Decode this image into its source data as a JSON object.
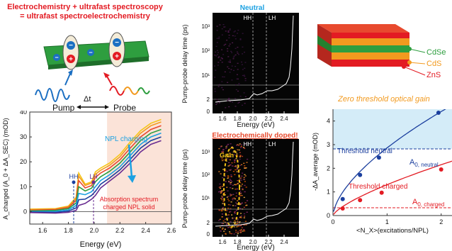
{
  "header": {
    "line1": "Electrochemistry + ultrafast spectroscopy",
    "line2": "= ultrafast spectroelectrochemistry"
  },
  "scheme": {
    "pump_label": "Pump",
    "probe_label": "Probe",
    "delay_label": "Δt",
    "plus": "+",
    "minus": "−"
  },
  "colors": {
    "title_red": "#e31b23",
    "neutral_blue": "#1ba1e2",
    "doped_red": "#e84a2e",
    "gain_yellow": "#f5c518",
    "cdse_green": "#2e9e3f",
    "cds_orange": "#f29a1f",
    "zns_red": "#e31b23",
    "fit_blue": "#1b3f9e",
    "fit_red": "#e31b23"
  },
  "spectra_panel": {
    "ylabel": "A_charged (A_0 + ΔA_SEC) (mOD)",
    "xlabel": "Energy (eV)",
    "annot_charging": "NPL charging",
    "annot_absorption1": "Absorption spectrum",
    "annot_absorption2": "charged NPL solid",
    "hh": "HH",
    "lh": "LH",
    "x_ticks": [
      "1.6",
      "1.8",
      "2.0",
      "2.2",
      "2.4",
      "2.6"
    ],
    "y_ticks": [
      "0",
      "10",
      "20",
      "30",
      "40"
    ]
  },
  "map_neutral": {
    "title": "Neutral",
    "ylabel": "Pump-probe delay time (ps)",
    "xlabel": "Energy (eV)",
    "hh": "HH",
    "lh": "LH",
    "x_ticks": [
      "1.6",
      "1.8",
      "2.0",
      "2.2",
      "2.4"
    ],
    "y_ticks": [
      "10³",
      "10²",
      "10¹",
      "2",
      "0"
    ]
  },
  "map_doped": {
    "title": "Electrochemically doped!",
    "ylabel": "Pump-probe delay time (ps)",
    "xlabel": "Energy (eV)",
    "gain_label": "Gain",
    "hh": "HH",
    "lh": "LH",
    "x_ticks": [
      "1.6",
      "1.8",
      "2.0",
      "2.2",
      "2.4"
    ],
    "y_ticks": [
      "10³",
      "10²",
      "10¹",
      "2",
      "0"
    ]
  },
  "heterostructure": {
    "layers": [
      "CdSe",
      "CdS",
      "ZnS"
    ]
  },
  "gain_panel": {
    "title": "Zero threshold optical gain",
    "ylabel": "-ΔA_average (mOD)",
    "xlabel": "<N_X>(excitations/NPL)",
    "threshold_neutral": "Threshold neutral",
    "threshold_charged": "Threshold charged",
    "a0_neutral": "A",
    "a0_neutral_sub": "0, neutral",
    "a0_charged": "A",
    "a0_charged_sub": "0, charged",
    "x_ticks": [
      "0",
      "1",
      "2"
    ],
    "y_ticks": [
      "0",
      "1",
      "2",
      "3",
      "4"
    ]
  },
  "chart_data": [
    {
      "type": "line",
      "xlabel": "Energy (eV)",
      "ylabel": "A_charged (A_0 + ΔA_SEC) (mOD)",
      "xlim": [
        1.5,
        2.6
      ],
      "ylim": [
        -5,
        40
      ],
      "annotations": [
        "NPL charging",
        "Absorption spectrum charged NPL solid",
        "HH",
        "LH"
      ],
      "series": [
        {
          "color": "#f5c518",
          "x": [
            1.5,
            1.7,
            1.8,
            1.86,
            1.88,
            1.93,
            1.98,
            2.01,
            2.05,
            2.12,
            2.2,
            2.28,
            2.36,
            2.44,
            2.52
          ],
          "y": [
            1.0,
            1.2,
            2.2,
            5.8,
            15.5,
            11.0,
            12.0,
            16.0,
            17.5,
            19.5,
            23.0,
            28.0,
            32.5,
            35.5,
            37.0
          ]
        },
        {
          "color": "#f29a1f",
          "x": [
            1.5,
            1.7,
            1.8,
            1.86,
            1.88,
            1.93,
            1.98,
            2.01,
            2.05,
            2.12,
            2.2,
            2.28,
            2.36,
            2.44,
            2.52
          ],
          "y": [
            0.8,
            1.0,
            2.0,
            5.3,
            14.3,
            10.5,
            11.5,
            15.0,
            16.6,
            18.6,
            22.0,
            27.0,
            31.5,
            34.5,
            36.0
          ]
        },
        {
          "color": "#e84a2e",
          "x": [
            1.5,
            1.7,
            1.8,
            1.86,
            1.88,
            1.93,
            1.98,
            2.01,
            2.05,
            2.12,
            2.2,
            2.28,
            2.36,
            2.44,
            2.52
          ],
          "y": [
            0.5,
            0.8,
            1.6,
            4.5,
            12.5,
            9.5,
            10.5,
            13.7,
            15.5,
            17.5,
            20.8,
            25.5,
            30.0,
            33.0,
            34.5
          ]
        },
        {
          "color": "#2e9e3f",
          "x": [
            1.5,
            1.7,
            1.8,
            1.86,
            1.88,
            1.93,
            1.98,
            2.01,
            2.05,
            2.12,
            2.2,
            2.28,
            2.36,
            2.44,
            2.52
          ],
          "y": [
            0.3,
            0.5,
            1.2,
            3.5,
            10.0,
            8.3,
            9.4,
            12.0,
            14.0,
            16.2,
            19.5,
            24.0,
            28.5,
            31.5,
            33.0
          ]
        },
        {
          "color": "#1ba1e2",
          "x": [
            1.5,
            1.7,
            1.8,
            1.86,
            1.88,
            1.93,
            1.98,
            2.01,
            2.05,
            2.12,
            2.2,
            2.28,
            2.36,
            2.44,
            2.52
          ],
          "y": [
            0.0,
            0.1,
            0.7,
            2.5,
            7.3,
            6.8,
            8.0,
            10.0,
            12.5,
            14.8,
            18.0,
            22.5,
            27.0,
            30.0,
            31.5
          ]
        },
        {
          "color": "#1b3f9e",
          "x": [
            1.5,
            1.7,
            1.8,
            1.86,
            1.88,
            1.93,
            1.98,
            2.01,
            2.05,
            2.12,
            2.2,
            2.28,
            2.36,
            2.44,
            2.52
          ],
          "y": [
            -0.2,
            -0.3,
            0.2,
            1.5,
            4.8,
            5.0,
            6.5,
            8.2,
            11.0,
            13.5,
            16.8,
            21.0,
            25.5,
            28.5,
            30.0
          ]
        },
        {
          "color": "#6a2d91",
          "x": [
            1.5,
            1.7,
            1.8,
            1.86,
            1.88,
            1.93,
            1.98,
            2.01,
            2.05,
            2.12,
            2.2,
            2.28,
            2.36,
            2.44,
            2.52
          ],
          "y": [
            -0.4,
            -0.6,
            -0.3,
            0.5,
            2.5,
            3.3,
            5.0,
            6.5,
            9.5,
            12.3,
            15.5,
            19.5,
            24.0,
            27.0,
            28.5
          ]
        }
      ]
    },
    {
      "type": "scatter",
      "title": "Zero threshold optical gain",
      "xlabel": "<N_X>(excitations/NPL)",
      "ylabel": "-ΔA_average (mOD)",
      "xlim": [
        0,
        2.2
      ],
      "ylim": [
        0,
        4.5
      ],
      "series": [
        {
          "color": "#1b3f9e",
          "x": [
            0.18,
            0.5,
            0.85,
            1.95
          ],
          "y": [
            0.7,
            1.72,
            2.45,
            4.35
          ]
        },
        {
          "color": "#e31b23",
          "x": [
            0.18,
            0.5,
            0.9,
            2.0
          ],
          "y": [
            0.3,
            0.65,
            0.97,
            1.95
          ]
        }
      ],
      "levels": {
        "A0_neutral": 2.82,
        "A0_charged": 0.33
      }
    }
  ]
}
